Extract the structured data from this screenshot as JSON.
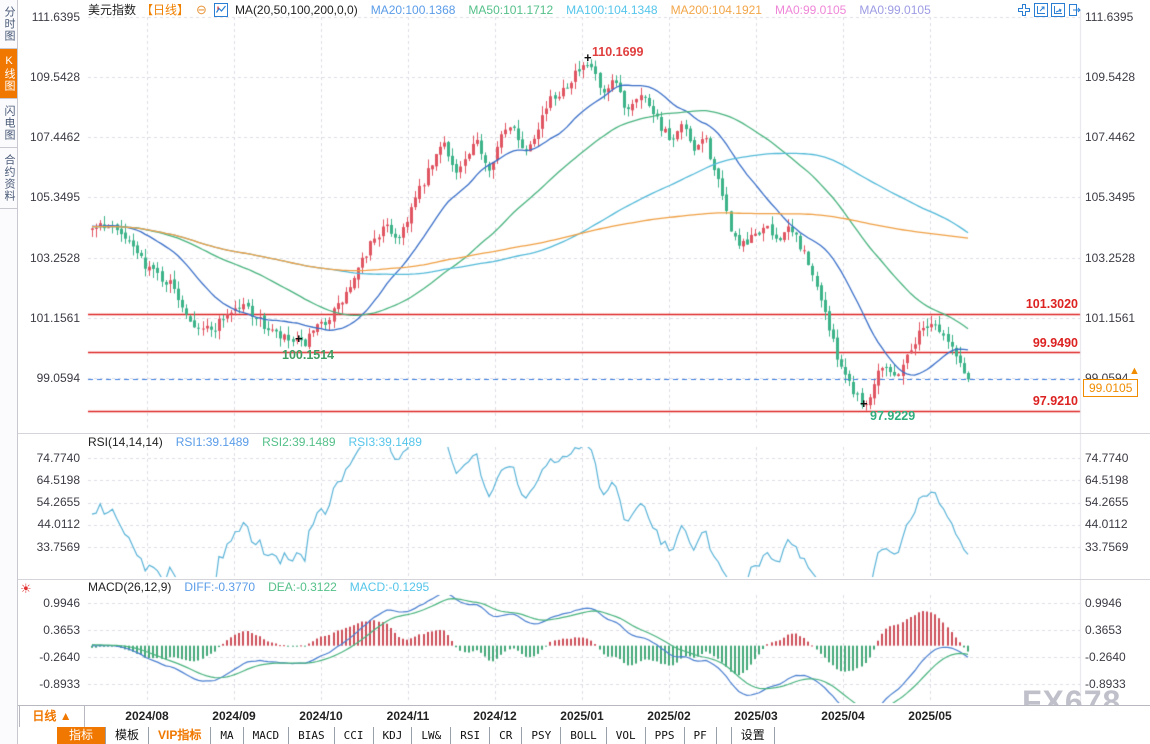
{
  "sidebar": {
    "items": [
      {
        "label": "分时图",
        "active": false
      },
      {
        "label": "K线图",
        "active": true
      },
      {
        "label": "闪电图",
        "active": false
      },
      {
        "label": "合约资料",
        "active": false
      }
    ]
  },
  "header": {
    "title": "美元指数",
    "period": "【日线】",
    "formula": "MA(20,50,100,200,0,0)",
    "ma": [
      "MA20:100.1368",
      "MA50:101.1712",
      "MA100:104.1348",
      "MA200:104.1921",
      "MA0:99.0105",
      "MA0:99.0105"
    ]
  },
  "icons": {
    "collapse": "⊖",
    "settings_sun": "☀",
    "up_arrow": "▲",
    "cross_marker": "+"
  },
  "axes": {
    "main": [
      "111.6395",
      "109.5428",
      "107.4462",
      "105.3495",
      "103.2528",
      "101.1561",
      "99.0594"
    ],
    "rsi": [
      "74.7740",
      "64.5198",
      "54.2655",
      "44.0112",
      "33.7569"
    ],
    "macd": [
      "0.9946",
      "0.3653",
      "-0.2640",
      "-0.8933"
    ]
  },
  "hline_labels": [
    "101.3020",
    "99.9490",
    "97.9210"
  ],
  "current": {
    "label": "99.0105"
  },
  "annotations": {
    "high": "110.1699",
    "sep_low": "100.1514",
    "apr_low": "97.9229"
  },
  "rsi_header": {
    "formula": "RSI(14,14,14)",
    "items": [
      "RSI1:39.1489",
      "RSI2:39.1489",
      "RSI3:39.1489"
    ]
  },
  "macd_header": {
    "formula": "MACD(26,12,9)",
    "items": [
      "DIFF:-0.3770",
      "DEA:-0.3122",
      "MACD:-0.1295"
    ]
  },
  "bottom": {
    "period_label": "日线 ▲",
    "dates": [
      "2024/08",
      "2024/09",
      "2024/10",
      "2024/11",
      "2024/12",
      "2025/01",
      "2025/02",
      "2025/03",
      "2025/04",
      "2025/05"
    ],
    "tabs": [
      "指标",
      "模板",
      "VIP指标",
      "MA",
      "MACD",
      "BIAS",
      "CCI",
      "KDJ",
      "LW&",
      "RSI",
      "CR",
      "PSY",
      "BOLL",
      "VOL",
      "PPS",
      "PF",
      "设置"
    ]
  },
  "watermark": "FX678",
  "colors": {
    "accent_orange": "#f07800",
    "up": "#e05562",
    "down": "#3db389",
    "ma20": "#3a6fc8",
    "ma50": "#48b37e",
    "ma100": "#52b9d8",
    "ma200": "#ef9f43",
    "rsi_line": "#5bb4d8",
    "diff_line": "#4a7fd0",
    "dea_line": "#48b37e",
    "hist_up": "#cc4f5a",
    "hist_down": "#44a878",
    "red_line": "#dd2222",
    "current_line": "#3d7fe0",
    "grid": "#dcdce4"
  },
  "chart_data": {
    "type": "candlestick",
    "title": "美元指数",
    "period": "日线",
    "x_labels": [
      "2024/08",
      "2024/09",
      "2024/10",
      "2024/11",
      "2024/12",
      "2025/01",
      "2025/02",
      "2025/03",
      "2025/04",
      "2025/05"
    ],
    "main": {
      "num_candles": 215,
      "y_ticks": [
        111.6395,
        109.5428,
        107.4462,
        105.3495,
        103.2528,
        101.1561,
        99.0594
      ],
      "ma_periods": [
        20,
        50,
        100,
        200
      ],
      "ma_last": {
        "ma20": 100.1368,
        "ma50": 101.1712,
        "ma100": 104.1348,
        "ma200": 104.1921
      },
      "hlines": [
        101.302,
        99.949,
        97.921
      ],
      "current_price": 99.0105,
      "key_points": {
        "peak_high": 110.1699,
        "sep_low": 100.1514,
        "apr_low": 97.9229,
        "last_close": 99.0105
      },
      "price_path_anchors": [
        [
          0.0,
          104.3
        ],
        [
          0.018,
          104.45
        ],
        [
          0.04,
          103.8
        ],
        [
          0.065,
          102.9
        ],
        [
          0.09,
          102.3
        ],
        [
          0.115,
          101.0
        ],
        [
          0.135,
          100.7
        ],
        [
          0.155,
          101.35
        ],
        [
          0.175,
          101.6
        ],
        [
          0.195,
          100.9
        ],
        [
          0.215,
          100.45
        ],
        [
          0.24,
          100.2
        ],
        [
          0.26,
          100.85
        ],
        [
          0.28,
          101.5
        ],
        [
          0.3,
          102.5
        ],
        [
          0.32,
          103.9
        ],
        [
          0.335,
          104.3
        ],
        [
          0.35,
          103.95
        ],
        [
          0.365,
          105.0
        ],
        [
          0.385,
          106.3
        ],
        [
          0.402,
          107.35
        ],
        [
          0.415,
          106.15
        ],
        [
          0.428,
          106.7
        ],
        [
          0.44,
          107.3
        ],
        [
          0.452,
          106.35
        ],
        [
          0.468,
          107.5
        ],
        [
          0.482,
          107.9
        ],
        [
          0.492,
          106.9
        ],
        [
          0.505,
          107.6
        ],
        [
          0.52,
          108.6
        ],
        [
          0.535,
          109.1
        ],
        [
          0.552,
          109.7
        ],
        [
          0.571,
          109.9
        ],
        [
          0.583,
          108.8
        ],
        [
          0.597,
          109.4
        ],
        [
          0.61,
          108.4
        ],
        [
          0.623,
          109.0
        ],
        [
          0.637,
          108.6
        ],
        [
          0.65,
          107.8
        ],
        [
          0.662,
          107.2
        ],
        [
          0.675,
          107.9
        ],
        [
          0.687,
          106.8
        ],
        [
          0.698,
          107.6
        ],
        [
          0.71,
          106.4
        ],
        [
          0.722,
          105.0
        ],
        [
          0.733,
          103.9
        ],
        [
          0.745,
          103.6
        ],
        [
          0.757,
          104.1
        ],
        [
          0.768,
          104.3
        ],
        [
          0.78,
          103.9
        ],
        [
          0.792,
          104.2
        ],
        [
          0.803,
          104.0
        ],
        [
          0.813,
          103.4
        ],
        [
          0.823,
          102.5
        ],
        [
          0.833,
          101.8
        ],
        [
          0.845,
          100.3
        ],
        [
          0.857,
          99.4
        ],
        [
          0.87,
          98.6
        ],
        [
          0.885,
          98.05
        ],
        [
          0.895,
          99.3
        ],
        [
          0.905,
          99.65
        ],
        [
          0.915,
          99.05
        ],
        [
          0.925,
          99.55
        ],
        [
          0.938,
          100.3
        ],
        [
          0.95,
          100.9
        ],
        [
          0.96,
          101.05
        ],
        [
          0.97,
          100.6
        ],
        [
          0.98,
          100.15
        ],
        [
          0.99,
          99.6
        ],
        [
          1.0,
          99.01
        ]
      ]
    },
    "rsi": {
      "params": [
        14,
        14,
        14
      ],
      "last_values": [
        39.1489,
        39.1489,
        39.1489
      ],
      "y_ticks": [
        74.774,
        64.5198,
        54.2655,
        44.0112,
        33.7569
      ]
    },
    "macd": {
      "params": [
        26,
        12,
        9
      ],
      "diff": -0.377,
      "dea": -0.3122,
      "macd": -0.1295,
      "y_ticks": [
        0.9946,
        0.3653,
        -0.264,
        -0.8933
      ]
    }
  }
}
